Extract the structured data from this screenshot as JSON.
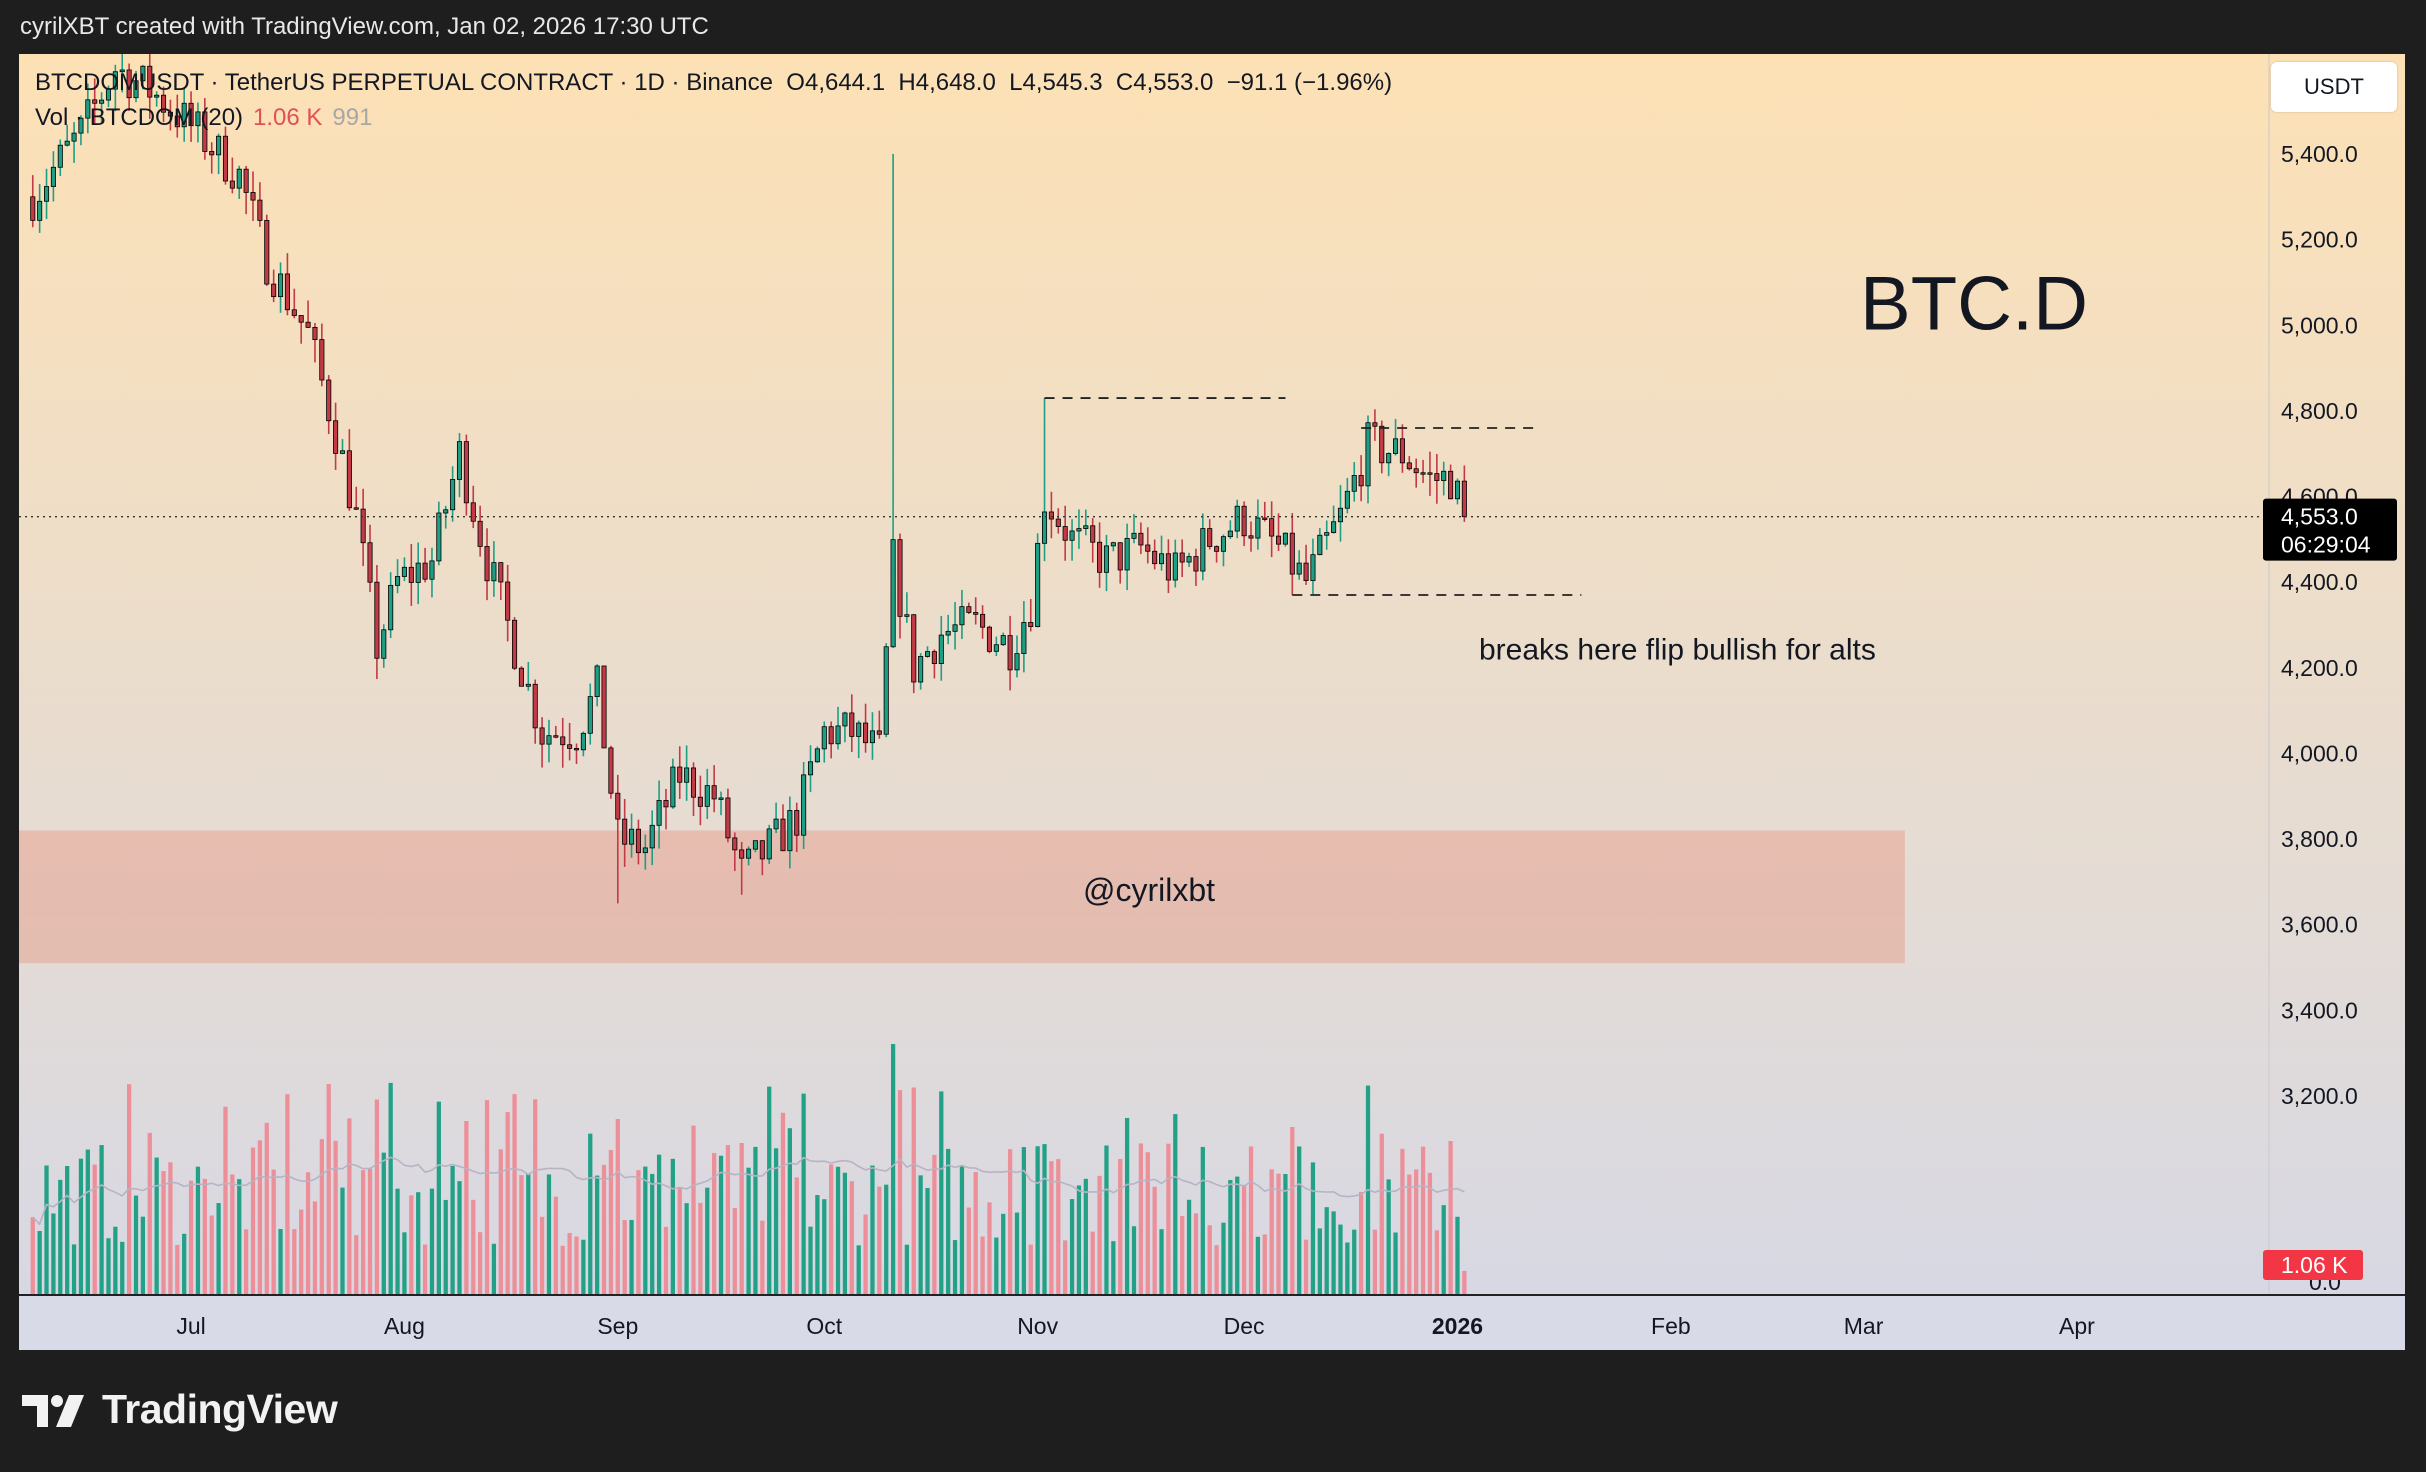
{
  "attribution": "cyrilXBT created with TradingView.com, Jan 02, 2026 17:30 UTC",
  "header": {
    "symbol_line": "BTCDOMUSDT · TetherUS PERPETUAL CONTRACT · 1D · Binance",
    "open": "O4,644.1",
    "high": "H4,648.0",
    "low": "L4,545.3",
    "close": "C4,553.0",
    "change": "−91.1 (−1.96%)",
    "volume_label": "Vol · BTCDOM (20)",
    "volume_value": "1.06 K",
    "volume_ma": "991"
  },
  "currency_button": "USDT",
  "price_tag": {
    "price": "4,553.0",
    "countdown": "06:29:04"
  },
  "volume_tag": "1.06 K",
  "brand": "TradingView",
  "chart_data": {
    "type": "candlestick",
    "symbol": "BTCDOMUSDT",
    "timeframe": "1D",
    "exchange": "Binance",
    "price_axis": {
      "ticks": [
        5400,
        5200,
        5000,
        4800,
        4600,
        4400,
        4200,
        4000,
        3800,
        3600,
        3400,
        3200
      ],
      "tick_labels": [
        "5,400.0",
        "5,200.0",
        "5,000.0",
        "4,800.0",
        "4,600.0",
        "4,400.0",
        "4,200.0",
        "4,000.0",
        "3,800.0",
        "3,600.0",
        "3,400.0",
        "3,200.0"
      ],
      "bottom_label": "0.0",
      "range": [
        3000,
        5600
      ]
    },
    "time_axis": {
      "labels": [
        "Jul",
        "Aug",
        "Sep",
        "Oct",
        "Nov",
        "Dec",
        "2026",
        "Feb",
        "Mar",
        "Apr"
      ],
      "dates": [
        "2025-07-01",
        "2025-08-01",
        "2025-09-01",
        "2025-10-01",
        "2025-11-01",
        "2025-12-01",
        "2026-01-01",
        "2026-02-01",
        "2026-03-01",
        "2026-04-01"
      ],
      "range": [
        "2025-06-06",
        "2026-04-26"
      ]
    },
    "close_series": [
      [
        "2025-06-08",
        5300
      ],
      [
        "2025-06-15",
        5450
      ],
      [
        "2025-06-20",
        5600
      ],
      [
        "2025-06-25",
        5550
      ],
      [
        "2025-07-02",
        5450
      ],
      [
        "2025-07-08",
        5350
      ],
      [
        "2025-07-12",
        5150
      ],
      [
        "2025-07-18",
        4980
      ],
      [
        "2025-07-22",
        4750
      ],
      [
        "2025-07-25",
        4550
      ],
      [
        "2025-07-28",
        4250
      ],
      [
        "2025-07-31",
        4400
      ],
      [
        "2025-08-05",
        4450
      ],
      [
        "2025-08-09",
        4700
      ],
      [
        "2025-08-13",
        4450
      ],
      [
        "2025-08-17",
        4250
      ],
      [
        "2025-08-21",
        4050
      ],
      [
        "2025-08-26",
        4050
      ],
      [
        "2025-08-29",
        4150
      ],
      [
        "2025-09-01",
        3800
      ],
      [
        "2025-09-05",
        3780
      ],
      [
        "2025-09-10",
        3950
      ],
      [
        "2025-09-15",
        3900
      ],
      [
        "2025-09-19",
        3720
      ],
      [
        "2025-09-23",
        3780
      ],
      [
        "2025-09-27",
        3850
      ],
      [
        "2025-10-01",
        4050
      ],
      [
        "2025-10-05",
        4050
      ],
      [
        "2025-10-09",
        4000
      ],
      [
        "2025-10-11",
        4450
      ],
      [
        "2025-10-14",
        4200
      ],
      [
        "2025-10-18",
        4280
      ],
      [
        "2025-10-23",
        4300
      ],
      [
        "2025-10-28",
        4250
      ],
      [
        "2025-10-31",
        4350
      ],
      [
        "2025-11-02",
        4600
      ],
      [
        "2025-11-06",
        4500
      ],
      [
        "2025-11-11",
        4450
      ],
      [
        "2025-11-16",
        4480
      ],
      [
        "2025-11-21",
        4420
      ],
      [
        "2025-11-26",
        4500
      ],
      [
        "2025-12-01",
        4550
      ],
      [
        "2025-12-06",
        4480
      ],
      [
        "2025-12-10",
        4400
      ],
      [
        "2025-12-15",
        4550
      ],
      [
        "2025-12-19",
        4720
      ],
      [
        "2025-12-24",
        4700
      ],
      [
        "2025-12-28",
        4640
      ],
      [
        "2025-12-31",
        4644
      ],
      [
        "2026-01-02",
        4553
      ]
    ],
    "volume_ma_period": 20,
    "last_volume": "1.06 K",
    "last_volume_ma": "991",
    "annotations": [
      {
        "type": "text",
        "text": "BTC.D"
      },
      {
        "type": "text",
        "text": "breaks here flip bullish for alts"
      },
      {
        "type": "text",
        "text": "@cyrilxbt"
      },
      {
        "type": "dashed_line",
        "price": 4830,
        "from": "2025-11-02",
        "to": "2025-12-07"
      },
      {
        "type": "dashed_line",
        "price": 4760,
        "from": "2025-12-18",
        "to": "2026-01-12"
      },
      {
        "type": "dashed_line",
        "price": 4370,
        "from": "2025-12-08",
        "to": "2026-01-19"
      },
      {
        "type": "zone",
        "price_range": [
          3510,
          3820
        ],
        "from": "2025-06-06",
        "to": "2026-03-07"
      },
      {
        "type": "price_line",
        "price": 4553
      }
    ]
  },
  "colors": {
    "up": "#1e9e84",
    "down": "#c23a46",
    "volume_up": "#22a187",
    "volume_down": "#ec8f98",
    "zone_fill": "#e6a897",
    "bg_top": "#fde1b5",
    "bg_bottom": "#d6d8e6",
    "price_tag_bg": "#000000",
    "volume_tag_bg": "#f23645",
    "frame_bg": "#1e1e1f"
  }
}
